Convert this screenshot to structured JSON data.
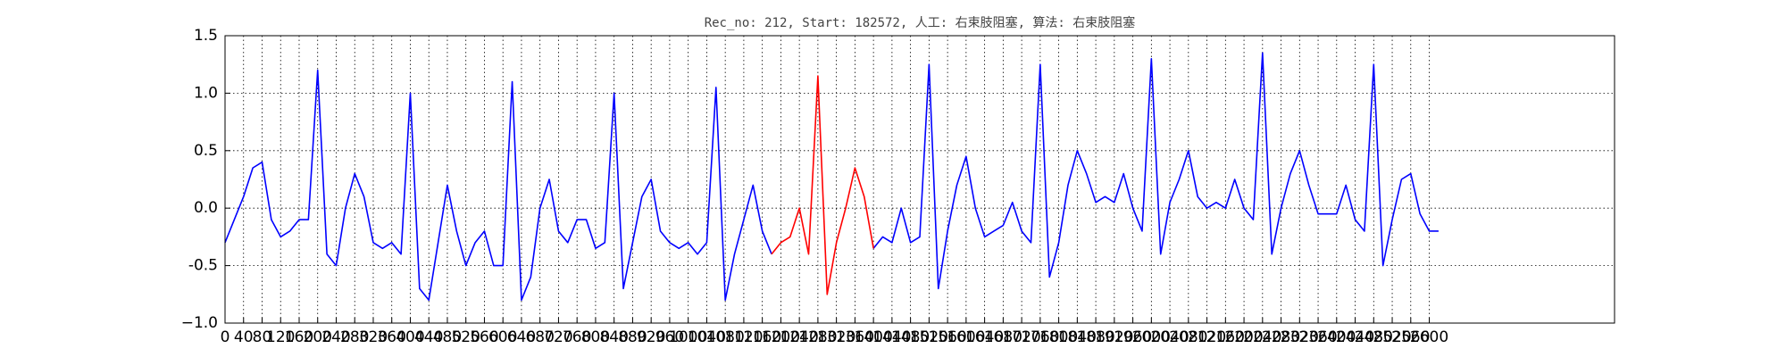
{
  "chart_data": {
    "type": "line",
    "title": "Rec_no: 212, Start: 182572, 人工: 右束肢阻塞, 算法: 右束肢阻塞",
    "x": [
      0,
      20,
      40,
      60,
      80,
      100,
      120,
      140,
      160,
      180,
      200,
      220,
      240,
      260,
      280,
      300,
      320,
      340,
      360,
      380,
      400,
      420,
      440,
      460,
      480,
      500,
      520,
      540,
      560,
      580,
      600,
      620,
      640,
      660,
      680,
      700,
      720,
      740,
      760,
      780,
      800,
      820,
      840,
      860,
      880,
      900,
      920,
      940,
      960,
      980,
      1000,
      1020,
      1040,
      1060,
      1080,
      1100,
      1120,
      1140,
      1160,
      1180,
      1200,
      1220,
      1240,
      1260,
      1280,
      1300,
      1320,
      1340,
      1360,
      1380,
      1400,
      1420,
      1440,
      1460,
      1480,
      1500,
      1520,
      1540,
      1560,
      1580,
      1600,
      1620,
      1640,
      1660,
      1680,
      1700,
      1720,
      1740,
      1760,
      1780,
      1800,
      1820,
      1840,
      1860,
      1880,
      1900,
      1920,
      1940,
      1960,
      1980,
      2000,
      2020,
      2040,
      2060,
      2080,
      2100,
      2120,
      2140,
      2160,
      2180,
      2200,
      2220,
      2240,
      2260,
      2280,
      2300,
      2320,
      2340,
      2360,
      2380,
      2400,
      2420,
      2440,
      2460,
      2480,
      2500,
      2520,
      2540,
      2560,
      2580,
      2600,
      2620
    ],
    "series": [
      {
        "color": "#0000ff",
        "values": [
          -0.3,
          -0.1,
          0.1,
          0.35,
          0.4,
          -0.1,
          -0.25,
          -0.2,
          -0.1,
          -0.1,
          1.2,
          -0.4,
          -0.5,
          0.0,
          0.3,
          0.1,
          -0.3,
          -0.35,
          -0.3,
          -0.4,
          1.0,
          -0.7,
          -0.8,
          -0.3,
          0.2,
          -0.2,
          -0.5,
          -0.3,
          -0.2,
          -0.5,
          -0.5,
          1.1,
          -0.8,
          -0.6,
          0.0,
          0.25,
          -0.2,
          -0.3,
          -0.1,
          -0.1,
          -0.35,
          -0.3,
          1.0,
          -0.7,
          -0.3,
          0.1,
          0.25,
          -0.2,
          -0.3,
          -0.35,
          -0.3,
          -0.4,
          -0.3,
          1.05,
          -0.8,
          -0.4,
          -0.1,
          0.2,
          -0.2,
          -0.4,
          null,
          null,
          null,
          null,
          null,
          null,
          null,
          null,
          null,
          null,
          -0.35,
          -0.25,
          -0.3,
          0.0,
          -0.3,
          -0.25,
          1.25,
          -0.7,
          -0.2,
          0.2,
          0.45,
          0.0,
          -0.25,
          -0.2,
          -0.15,
          0.05,
          -0.2,
          -0.3,
          1.25,
          -0.6,
          -0.3,
          0.2,
          0.5,
          0.3,
          0.05,
          0.1,
          0.05,
          0.3,
          0.0,
          -0.2,
          1.3,
          -0.4,
          0.05,
          0.25,
          0.5,
          0.1,
          0.0,
          0.05,
          0.0,
          0.25,
          0.0,
          -0.1,
          1.35,
          -0.4,
          0.0,
          0.3,
          0.5,
          0.2,
          -0.05,
          -0.05,
          -0.05,
          0.2,
          -0.1,
          -0.2,
          1.25,
          -0.5,
          -0.1,
          0.25,
          0.3,
          -0.05,
          -0.2,
          -0.2
        ]
      },
      {
        "color": "#ff0000",
        "values": [
          null,
          null,
          null,
          null,
          null,
          null,
          null,
          null,
          null,
          null,
          null,
          null,
          null,
          null,
          null,
          null,
          null,
          null,
          null,
          null,
          null,
          null,
          null,
          null,
          null,
          null,
          null,
          null,
          null,
          null,
          null,
          null,
          null,
          null,
          null,
          null,
          null,
          null,
          null,
          null,
          null,
          null,
          null,
          null,
          null,
          null,
          null,
          null,
          null,
          null,
          null,
          null,
          null,
          null,
          null,
          null,
          null,
          null,
          null,
          -0.4,
          -0.3,
          -0.25,
          0.0,
          -0.4,
          1.15,
          -0.75,
          -0.3,
          0.0,
          0.35,
          0.1,
          -0.35,
          null,
          null,
          null,
          null,
          null,
          null,
          null,
          null,
          null,
          null,
          null,
          null,
          null,
          null,
          null,
          null,
          null,
          null,
          null,
          null,
          null,
          null,
          null,
          null,
          null,
          null,
          null,
          null,
          null,
          null,
          null,
          null,
          null,
          null,
          null,
          null,
          null,
          null,
          null,
          null,
          null,
          null,
          null,
          null,
          null,
          null,
          null,
          null,
          null,
          null,
          null,
          null,
          null,
          null,
          null,
          null,
          null,
          null,
          null,
          null,
          null
        ]
      }
    ],
    "xlim": [
      0,
      3000
    ],
    "xticks": [
      0,
      40,
      80,
      120,
      160,
      200,
      240,
      280,
      320,
      360,
      400,
      440,
      480,
      520,
      560,
      600,
      640,
      680,
      720,
      760,
      800,
      840,
      880,
      920,
      960,
      1000,
      1040,
      1080,
      1120,
      1160,
      1200,
      1240,
      1280,
      1320,
      1360,
      1400,
      1440,
      1480,
      1520,
      1560,
      1600,
      1640,
      1680,
      1720,
      1760,
      1800,
      1840,
      1880,
      1920,
      1960,
      2000,
      2040,
      2080,
      2120,
      2160,
      2200,
      2240,
      2280,
      2320,
      2360,
      2400,
      2440,
      2480,
      2520,
      2560,
      2600
    ],
    "ylim": [
      -1.0,
      1.5
    ],
    "yticks": [
      {
        "value": -1.0,
        "label": "−1.0"
      },
      -0.5,
      {
        "value": 0.0,
        "label": "0.0"
      },
      0.5,
      {
        "value": 1.0,
        "label": "1.0"
      },
      1.5
    ],
    "grid": true
  }
}
